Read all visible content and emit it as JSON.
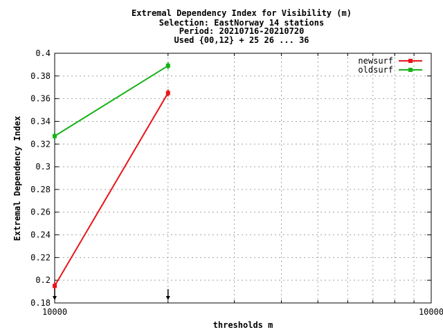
{
  "chart_data": {
    "type": "line",
    "title_lines": [
      "Extremal Dependency Index  for Visibility (m)",
      "Selection: EastNorway     14 stations",
      "Period: 20210716-20210720",
      "Used {00,12} + 25 26 ... 36"
    ],
    "xlabel": "thresholds m",
    "ylabel": "Extremal Dependency Index",
    "x_scale": "log",
    "xlim": [
      1000,
      10000
    ],
    "ylim": [
      0.18,
      0.4
    ],
    "x_tick_labels": [
      "10000",
      "10000"
    ],
    "y_ticks": [
      0.18,
      0.2,
      0.22,
      0.24,
      0.26,
      0.28,
      0.3,
      0.32,
      0.34,
      0.36,
      0.38,
      0.4
    ],
    "y_tick_labels": [
      "0.18",
      "0.2",
      "0.22",
      "0.24",
      "0.26",
      "0.28",
      "0.3",
      "0.32",
      "0.34",
      "0.36",
      "0.38",
      "0.4"
    ],
    "grid": true,
    "legend_position": "top-right",
    "series": [
      {
        "name": "newsurf",
        "color": "#e8141a",
        "x": [
          1000,
          2000
        ],
        "y": [
          0.195,
          0.365
        ]
      },
      {
        "name": "oldsurf",
        "color": "#16b216",
        "x": [
          1000,
          2000
        ],
        "y": [
          0.327,
          0.389
        ]
      }
    ],
    "threshold_markers_x": [
      1000,
      2000
    ]
  }
}
